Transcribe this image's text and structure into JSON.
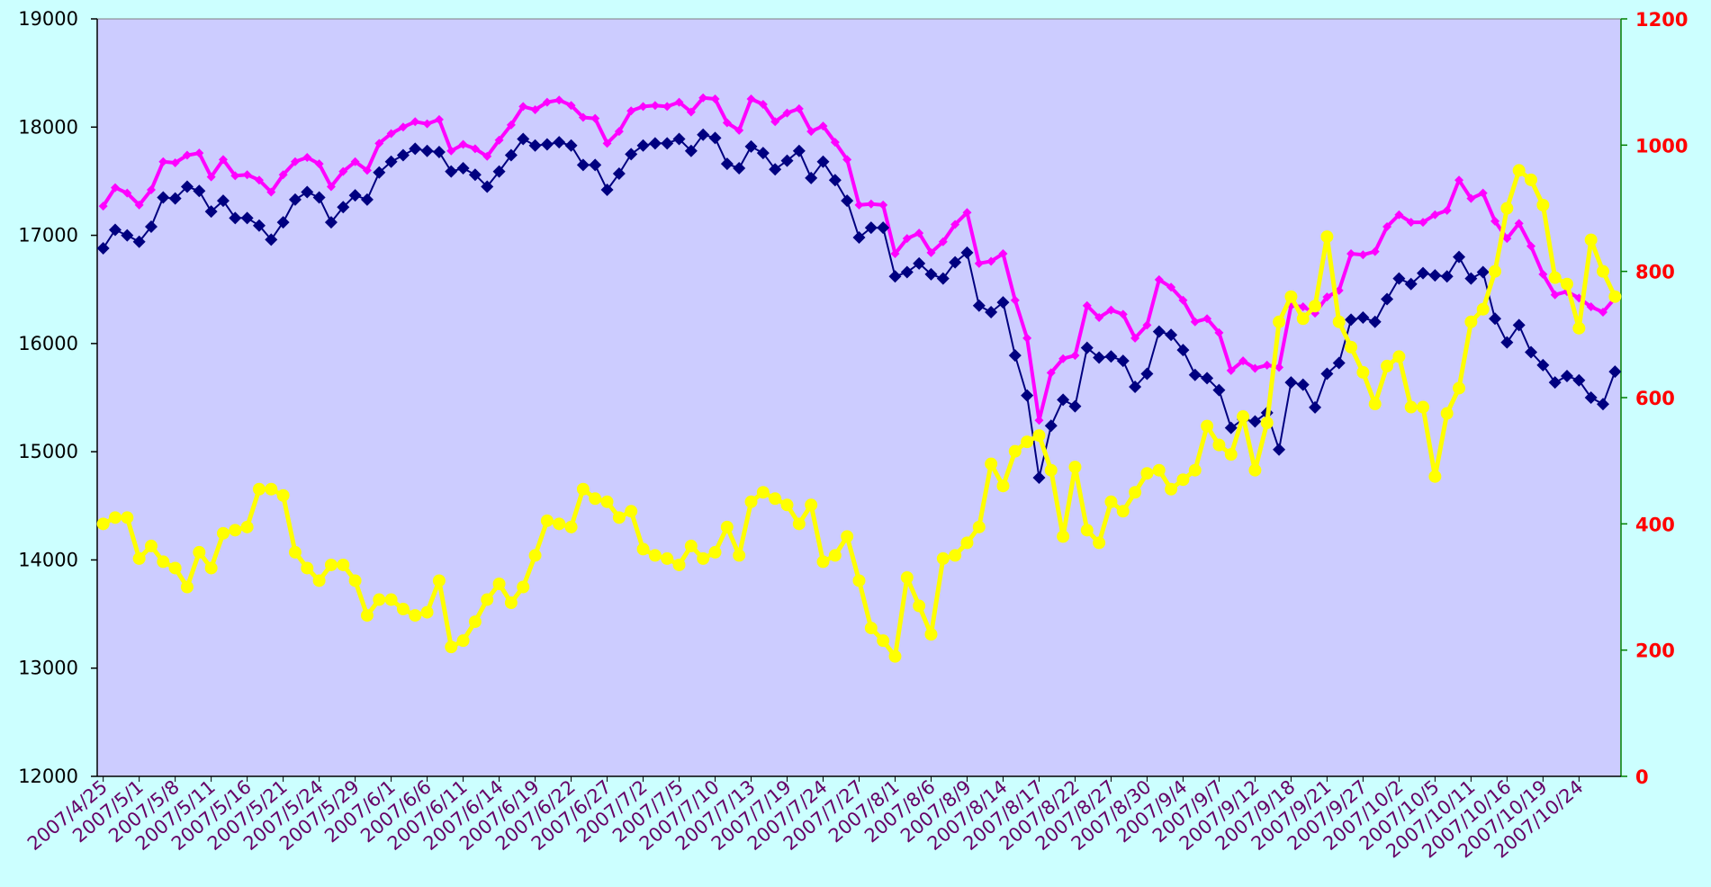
{
  "chart_data": {
    "type": "line",
    "categories": [
      "2007/4/25",
      null,
      null,
      "2007/5/1",
      null,
      null,
      "2007/5/8",
      null,
      null,
      "2007/5/11",
      null,
      null,
      "2007/5/16",
      null,
      null,
      "2007/5/21",
      null,
      null,
      "2007/5/24",
      null,
      null,
      "2007/5/29",
      null,
      null,
      "2007/6/1",
      null,
      null,
      "2007/6/6",
      null,
      null,
      "2007/6/11",
      null,
      null,
      "2007/6/14",
      null,
      null,
      "2007/6/19",
      null,
      null,
      "2007/6/22",
      null,
      null,
      "2007/6/27",
      null,
      null,
      "2007/7/2",
      null,
      null,
      "2007/7/5",
      null,
      null,
      "2007/7/10",
      null,
      null,
      "2007/7/13",
      null,
      null,
      "2007/7/19",
      null,
      null,
      "2007/7/24",
      null,
      null,
      "2007/7/27",
      null,
      null,
      "2007/8/1",
      null,
      null,
      "2007/8/6",
      null,
      null,
      "2007/8/9",
      null,
      null,
      "2007/8/14",
      null,
      null,
      "2007/8/17",
      null,
      null,
      "2007/8/22",
      null,
      null,
      "2007/8/27",
      null,
      null,
      "2007/8/30",
      null,
      null,
      "2007/9/4",
      null,
      null,
      "2007/9/7",
      null,
      null,
      "2007/9/12",
      null,
      null,
      "2007/9/18",
      null,
      null,
      "2007/9/21",
      null,
      null,
      "2007/9/27",
      null,
      null,
      "2007/10/2",
      null,
      null,
      "2007/10/5",
      null,
      null,
      "2007/10/11",
      null,
      null,
      "2007/10/16",
      null,
      null,
      "2007/10/19",
      null,
      null,
      "2007/10/24",
      null,
      null,
      null
    ],
    "series": [
      {
        "color": "#ff00ff",
        "marker": "diamond",
        "values": [
          17270,
          17440,
          17390,
          17280,
          17420,
          17680,
          17670,
          17740,
          17760,
          17540,
          17700,
          17550,
          17560,
          17510,
          17400,
          17560,
          17680,
          17720,
          17660,
          17450,
          17590,
          17680,
          17600,
          17850,
          17940,
          18000,
          18050,
          18030,
          18070,
          17780,
          17840,
          17800,
          17730,
          17880,
          18020,
          18190,
          18160,
          18230,
          18250,
          18200,
          18090,
          18080,
          17850,
          17960,
          18150,
          18190,
          18200,
          18190,
          18230,
          18140,
          18270,
          18260,
          18040,
          17970,
          18260,
          18210,
          18050,
          18130,
          18170,
          17960,
          18010,
          17860,
          17700,
          17280,
          17290,
          17280,
          16830,
          16970,
          17020,
          16840,
          16940,
          17100,
          17210,
          16740,
          16760,
          16830,
          16400,
          16050,
          15290,
          15730,
          15860,
          15890,
          16350,
          16240,
          16310,
          16270,
          16050,
          16170,
          16590,
          16520,
          16400,
          16200,
          16230,
          16100,
          15750,
          15840,
          15770,
          15800,
          15780,
          16350,
          16340,
          16280,
          16430,
          16490,
          16830,
          16820,
          16850,
          17080,
          17190,
          17120,
          17120,
          17190,
          17230,
          17510,
          17340,
          17390,
          17130,
          16970,
          17110,
          16900,
          16640,
          16450,
          16480,
          16420,
          16340,
          16290,
          16420
        ]
      },
      {
        "color": "#000080",
        "marker": "diamond",
        "values": [
          16880,
          17050,
          17000,
          16940,
          17080,
          17350,
          17340,
          17450,
          17410,
          17220,
          17320,
          17160,
          17160,
          17090,
          16960,
          17120,
          17330,
          17400,
          17350,
          17120,
          17260,
          17370,
          17330,
          17580,
          17680,
          17740,
          17800,
          17780,
          17770,
          17590,
          17620,
          17560,
          17450,
          17590,
          17740,
          17890,
          17830,
          17840,
          17860,
          17830,
          17650,
          17650,
          17420,
          17570,
          17750,
          17830,
          17850,
          17850,
          17890,
          17780,
          17930,
          17900,
          17660,
          17620,
          17820,
          17760,
          17610,
          17690,
          17780,
          17530,
          17680,
          17510,
          17320,
          16980,
          17070,
          17070,
          16620,
          16660,
          16740,
          16640,
          16600,
          16750,
          16840,
          16350,
          16290,
          16380,
          15890,
          15520,
          14760,
          15240,
          15480,
          15420,
          15960,
          15870,
          15880,
          15840,
          15600,
          15720,
          16110,
          16080,
          15940,
          15710,
          15680,
          15570,
          15220,
          15300,
          15280,
          15360,
          15020,
          15640,
          15620,
          15410,
          15720,
          15820,
          16220,
          16240,
          16200,
          16410,
          16600,
          16550,
          16650,
          16630,
          16620,
          16800,
          16600,
          16660,
          16230,
          16010,
          16170,
          15920,
          15800,
          15640,
          15700,
          15660,
          15500,
          15440,
          15740
        ]
      },
      {
        "color": "#ffff00",
        "marker": "circle",
        "axis": "y2",
        "values": [
          400,
          410,
          410,
          345,
          365,
          340,
          330,
          300,
          355,
          330,
          385,
          390,
          395,
          455,
          455,
          445,
          355,
          330,
          310,
          335,
          335,
          310,
          255,
          280,
          280,
          265,
          255,
          260,
          310,
          205,
          215,
          245,
          280,
          305,
          275,
          300,
          350,
          405,
          400,
          395,
          455,
          440,
          435,
          410,
          420,
          360,
          350,
          345,
          335,
          365,
          345,
          355,
          395,
          350,
          435,
          450,
          440,
          430,
          400,
          430,
          340,
          350,
          380,
          310,
          235,
          215,
          190,
          315,
          270,
          225,
          345,
          350,
          370,
          395,
          495,
          460,
          515,
          530,
          540,
          485,
          380,
          490,
          390,
          370,
          435,
          420,
          450,
          480,
          485,
          455,
          470,
          485,
          555,
          525,
          510,
          570,
          485,
          560,
          720,
          760,
          725,
          745,
          855,
          720,
          680,
          640,
          590,
          650,
          665,
          585,
          585,
          475,
          575,
          615,
          720,
          740,
          800,
          900,
          960,
          945,
          905,
          790,
          780,
          710,
          850,
          800,
          760
        ]
      }
    ],
    "ylim": [
      12000,
      19000
    ],
    "yticks": [
      12000,
      13000,
      14000,
      15000,
      16000,
      17000,
      18000,
      19000
    ],
    "y2lim": [
      0,
      1200
    ],
    "y2ticks": [
      0,
      200,
      400,
      600,
      800,
      1000,
      1200
    ],
    "y2_color": "#ff0000",
    "plot_background": "#ccccff",
    "grid": false
  }
}
